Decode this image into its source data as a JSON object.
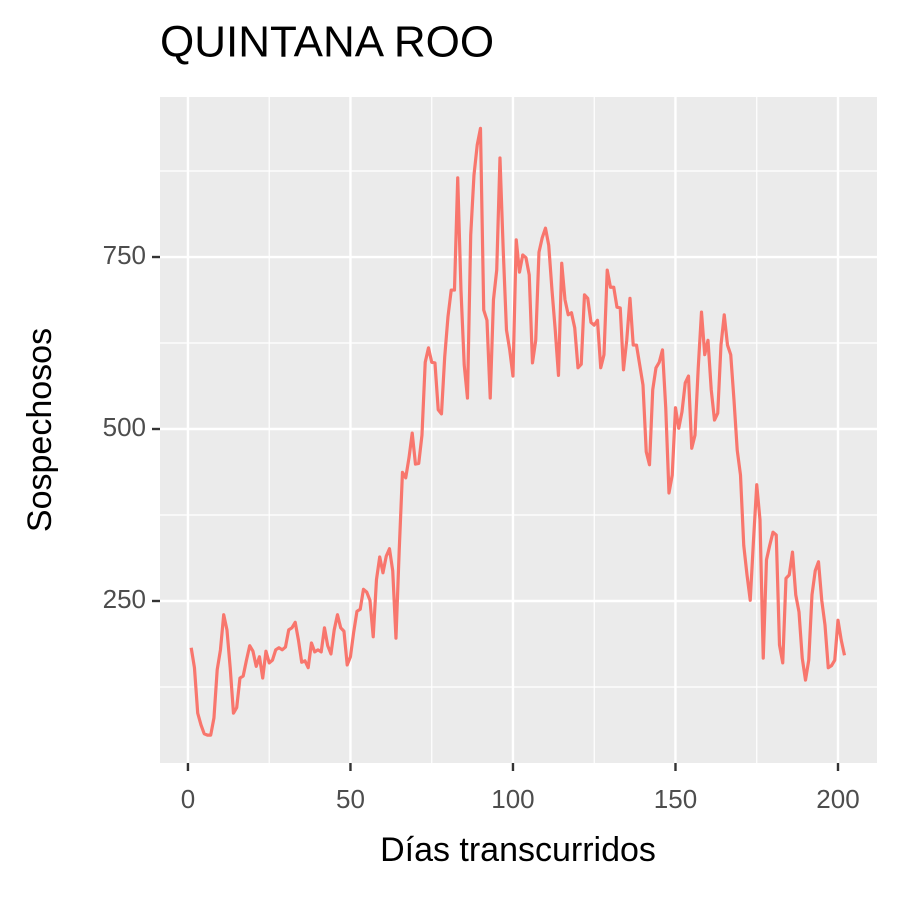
{
  "chart_data": {
    "type": "line",
    "title": "QUINTANA ROO",
    "x_label": "Días transcurridos",
    "y_label": "Sospechosos",
    "x": [
      1,
      2,
      3,
      4,
      5,
      6,
      7,
      8,
      9,
      10,
      11,
      12,
      13,
      14,
      15,
      16,
      17,
      18,
      19,
      20,
      21,
      22,
      23,
      24,
      25,
      26,
      27,
      28,
      29,
      30,
      31,
      32,
      33,
      34,
      35,
      36,
      37,
      38,
      39,
      40,
      41,
      42,
      43,
      44,
      45,
      46,
      47,
      48,
      49,
      50,
      51,
      52,
      53,
      54,
      55,
      56,
      57,
      58,
      59,
      60,
      61,
      62,
      63,
      64,
      65,
      66,
      67,
      68,
      69,
      70,
      71,
      72,
      73,
      74,
      75,
      76,
      77,
      78,
      79,
      80,
      81,
      82,
      83,
      84,
      85,
      86,
      87,
      88,
      89,
      90,
      91,
      92,
      93,
      94,
      95,
      96,
      97,
      98,
      99,
      100,
      101,
      102,
      103,
      104,
      105,
      106,
      107,
      108,
      109,
      110,
      111,
      112,
      113,
      114,
      115,
      116,
      117,
      118,
      119,
      120,
      121,
      122,
      123,
      124,
      125,
      126,
      127,
      128,
      129,
      130,
      131,
      132,
      133,
      134,
      135,
      136,
      137,
      138,
      139,
      140,
      141,
      142,
      143,
      144,
      145,
      146,
      147,
      148,
      149,
      150,
      151,
      152,
      153,
      154,
      155,
      156,
      157,
      158,
      159,
      160,
      161,
      162,
      163,
      164,
      165,
      166,
      167,
      168,
      169,
      170,
      171,
      172,
      173,
      174,
      175,
      176,
      177,
      178,
      179,
      180,
      181,
      182,
      183,
      184,
      185,
      186,
      187,
      188,
      189,
      190,
      191,
      192,
      193,
      194,
      195,
      196,
      197,
      198,
      199,
      200,
      201,
      202
    ],
    "series": [
      {
        "color": "#f8766d",
        "values": [
          182,
          153,
          87,
          70,
          57,
          55,
          55,
          80,
          150,
          179,
          230,
          208,
          153,
          87,
          95,
          138,
          141,
          164,
          185,
          177,
          155,
          169,
          138,
          177,
          160,
          164,
          179,
          182,
          179,
          183,
          208,
          211,
          219,
          193,
          161,
          163,
          153,
          189,
          176,
          179,
          176,
          211,
          185,
          173,
          208,
          230,
          211,
          206,
          157,
          169,
          205,
          235,
          238,
          267,
          263,
          251,
          198,
          281,
          314,
          291,
          315,
          326,
          294,
          196,
          324,
          437,
          429,
          458,
          494,
          449,
          450,
          491,
          597,
          618,
          597,
          596,
          528,
          522,
          605,
          663,
          702,
          702,
          865,
          702,
          593,
          545,
          782,
          869,
          913,
          937,
          673,
          658,
          545,
          688,
          731,
          894,
          760,
          644,
          615,
          577,
          775,
          728,
          753,
          749,
          724,
          596,
          629,
          757,
          778,
          792,
          767,
          702,
          644,
          578,
          741,
          688,
          666,
          669,
          647,
          589,
          594,
          695,
          690,
          655,
          651,
          658,
          589,
          608,
          731,
          706,
          706,
          677,
          676,
          586,
          629,
          690,
          622,
          622,
          593,
          564,
          467,
          448,
          557,
          589,
          597,
          615,
          531,
          407,
          433,
          531,
          501,
          525,
          567,
          577,
          472,
          491,
          589,
          670,
          608,
          629,
          557,
          513,
          523,
          622,
          666,
          622,
          608,
          542,
          469,
          433,
          331,
          288,
          251,
          338,
          419,
          368,
          167,
          310,
          331,
          350,
          346,
          186,
          160,
          283,
          288,
          321,
          259,
          234,
          167,
          135,
          164,
          259,
          294,
          307,
          251,
          215,
          153,
          156,
          164,
          222,
          193,
          171
        ]
      }
    ],
    "xlim": [
      -8.6,
      212
    ],
    "ylim": [
      14.5,
      982.6
    ],
    "xticks": [
      0,
      50,
      100,
      150,
      200
    ],
    "yticks": [
      250,
      500,
      750
    ],
    "minor_xticks": [
      25,
      75,
      125,
      175
    ],
    "minor_yticks": [
      125,
      375,
      625,
      875
    ],
    "grid": true
  }
}
